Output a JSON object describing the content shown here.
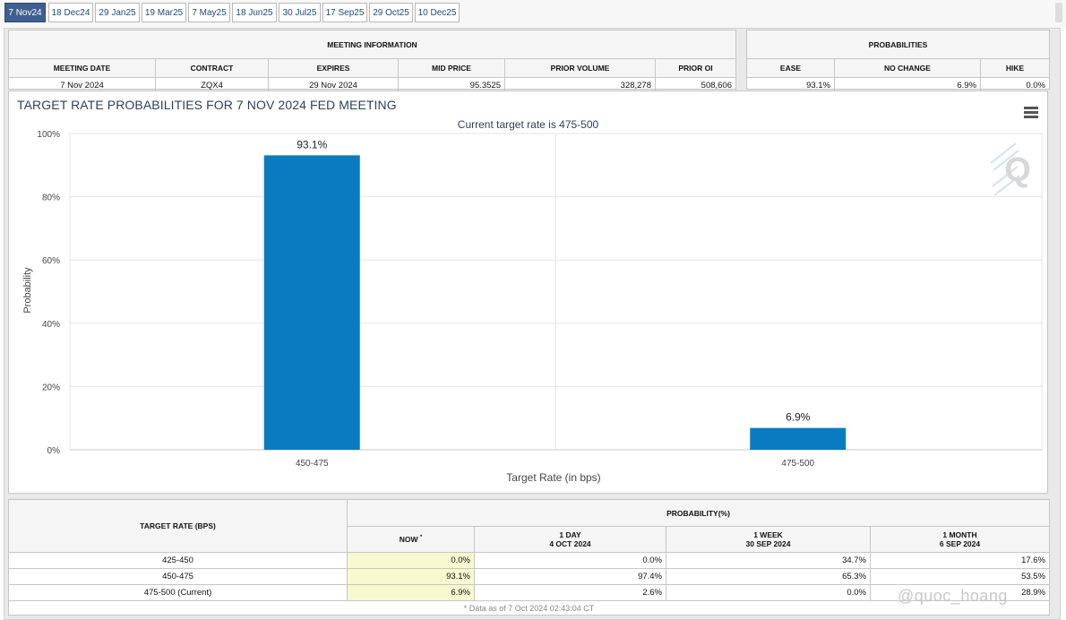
{
  "tabs": [
    "7 Nov24",
    "18 Dec24",
    "29 Jan25",
    "19 Mar25",
    "7 May25",
    "18 Jun25",
    "30 Jul25",
    "17 Sep25",
    "29 Oct25",
    "10 Dec25"
  ],
  "meeting_info": {
    "title": "MEETING INFORMATION",
    "headers": [
      "MEETING DATE",
      "CONTRACT",
      "EXPIRES",
      "MID PRICE",
      "PRIOR VOLUME",
      "PRIOR OI"
    ],
    "values": [
      "7 Nov 2024",
      "ZQX4",
      "29 Nov 2024",
      "95.3525",
      "328,278",
      "508,606"
    ]
  },
  "probabilities": {
    "title": "PROBABILITIES",
    "headers": [
      "EASE",
      "NO CHANGE",
      "HIKE"
    ],
    "values": [
      "93.1%",
      "6.9%",
      "0.0%"
    ]
  },
  "chart": {
    "menu_icon": "hamburger-menu-icon",
    "logo_icon": "quikstrike-logo-icon",
    "logo_text": "Q"
  },
  "chart_data": {
    "type": "bar",
    "title": "TARGET RATE PROBABILITIES FOR 7 NOV 2024 FED MEETING",
    "subtitle": "Current target rate is 475-500",
    "categories": [
      "450-475",
      "475-500"
    ],
    "values": [
      93.1,
      6.9
    ],
    "data_labels": [
      "93.1%",
      "6.9%"
    ],
    "xlabel": "Target Rate (in bps)",
    "ylabel": "Probability",
    "ylim": [
      0,
      100
    ],
    "yticks": [
      0,
      20,
      40,
      60,
      80,
      100
    ],
    "ytick_labels": [
      "0%",
      "20%",
      "40%",
      "60%",
      "80%",
      "100%"
    ],
    "grid": true,
    "bar_color": "#0a7bc1"
  },
  "prob_table": {
    "rate_header": "TARGET RATE (BPS)",
    "prob_header": "PROBABILITY(%)",
    "now_label": "NOW",
    "now_marker": "*",
    "columns": [
      {
        "line1": "1 DAY",
        "line2": "4 OCT 2024"
      },
      {
        "line1": "1 WEEK",
        "line2": "30 SEP 2024"
      },
      {
        "line1": "1 MONTH",
        "line2": "6 SEP 2024"
      }
    ],
    "rows": [
      {
        "rate": "425-450",
        "now": "0.0%",
        "day": "0.0%",
        "week": "34.7%",
        "month": "17.6%"
      },
      {
        "rate": "450-475",
        "now": "93.1%",
        "day": "97.4%",
        "week": "65.3%",
        "month": "53.5%"
      },
      {
        "rate": "475-500 (Current)",
        "now": "6.9%",
        "day": "2.6%",
        "week": "0.0%",
        "month": "28.9%"
      }
    ],
    "footnote": "* Data as of 7 Oct 2024 02:43:04 CT"
  },
  "watermark": "@quoc_hoang"
}
